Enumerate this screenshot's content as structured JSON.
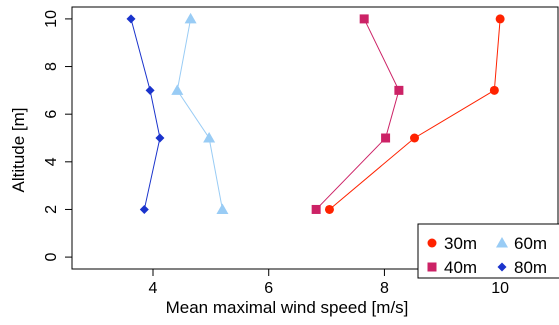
{
  "chart_data": {
    "type": "line",
    "xlabel": "Mean maximal wind speed  [m/s]",
    "ylabel": "Altitude [m]",
    "xlim": [
      2.6,
      11
    ],
    "ylim": [
      -0.5,
      10.5
    ],
    "x_ticks": [
      4,
      6,
      8,
      10
    ],
    "y_ticks": [
      0,
      2,
      4,
      6,
      8,
      10
    ],
    "grid": false,
    "legend_position": "bottom-right",
    "series": [
      {
        "name": "30m",
        "color": "#ff2200",
        "marker": "circle",
        "x": [
          7.05,
          8.52,
          9.9,
          10.0
        ],
        "y": [
          2,
          5,
          7,
          10
        ]
      },
      {
        "name": "40m",
        "color": "#cc2266",
        "marker": "square",
        "x": [
          6.82,
          8.02,
          8.25,
          7.65
        ],
        "y": [
          2,
          5,
          7,
          10
        ]
      },
      {
        "name": "60m",
        "color": "#99ccf5",
        "marker": "triangle",
        "x": [
          5.2,
          4.97,
          4.42,
          4.65
        ],
        "y": [
          2,
          5,
          7,
          10
        ]
      },
      {
        "name": "80m",
        "color": "#1a33cc",
        "marker": "diamond",
        "x": [
          3.85,
          4.12,
          3.95,
          3.62
        ],
        "y": [
          2,
          5,
          7,
          10
        ]
      }
    ]
  }
}
